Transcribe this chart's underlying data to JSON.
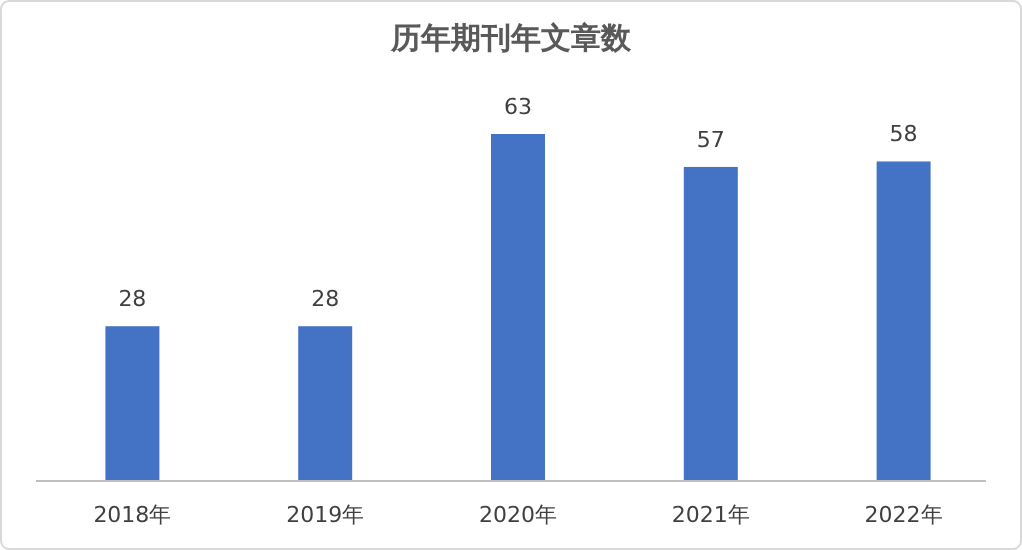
{
  "chart_data": {
    "type": "bar",
    "title": "历年期刊年文章数",
    "categories": [
      "2018年",
      "2019年",
      "2020年",
      "2021年",
      "2022年"
    ],
    "values": [
      28,
      28,
      63,
      57,
      58
    ],
    "color": "#4472c4",
    "data_labels": true
  }
}
